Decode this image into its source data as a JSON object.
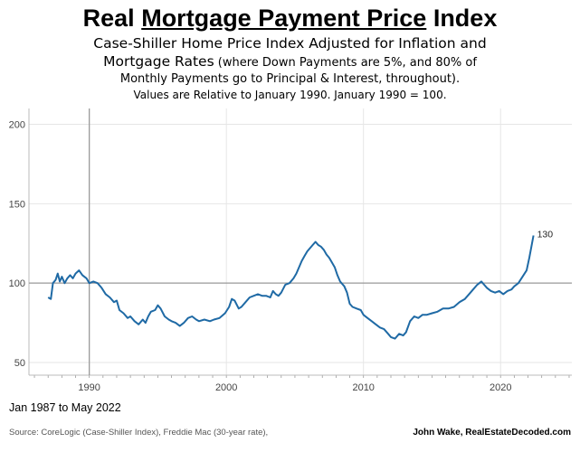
{
  "title": {
    "part1": "Real ",
    "underlined": "Mortgage Payment Price",
    "part2": " Index"
  },
  "subtitle": {
    "line1": "Case-Shiller Home Price Index Adjusted for Inflation and",
    "line2_main": "Mortgage Rates",
    "line2_small": " (where Down Payments are 5%, and 80% of",
    "line3": "Monthly Payments go to Principal & Interest, throughout).",
    "line4": "Values are Relative to January 1990. January 1990 = 100."
  },
  "date_range": "Jan 1987 to May 2022",
  "source": "Source: CoreLogic (Case-Shiller Index), Freddie Mac (30-year rate),",
  "credit": "John Wake, RealEstateDecoded.com",
  "end_label": "130",
  "chart_data": {
    "type": "line",
    "xlim": [
      1985.6,
      2025.2
    ],
    "ylim": [
      42,
      210
    ],
    "yticks": [
      50,
      100,
      150,
      200
    ],
    "xticks": [
      1990,
      2000,
      2010,
      2020
    ],
    "reference_line_y": 100,
    "reference_line_x": 1990,
    "grid": true,
    "color": "#1f6aa5",
    "series": [
      {
        "values": [
          [
            1987.0,
            91
          ],
          [
            1987.2,
            90
          ],
          [
            1987.35,
            100
          ],
          [
            1987.55,
            102
          ],
          [
            1987.7,
            106
          ],
          [
            1987.85,
            101
          ],
          [
            1988.0,
            104
          ],
          [
            1988.2,
            100
          ],
          [
            1988.4,
            103
          ],
          [
            1988.6,
            105
          ],
          [
            1988.8,
            103
          ],
          [
            1989.0,
            106
          ],
          [
            1989.25,
            108
          ],
          [
            1989.5,
            105
          ],
          [
            1989.8,
            103
          ],
          [
            1990.0,
            100
          ],
          [
            1990.3,
            101
          ],
          [
            1990.6,
            100
          ],
          [
            1990.9,
            97
          ],
          [
            1991.2,
            93
          ],
          [
            1991.5,
            91
          ],
          [
            1991.8,
            88
          ],
          [
            1992.0,
            89
          ],
          [
            1992.2,
            83
          ],
          [
            1992.5,
            81
          ],
          [
            1992.8,
            78
          ],
          [
            1993.0,
            79
          ],
          [
            1993.3,
            76
          ],
          [
            1993.6,
            74
          ],
          [
            1993.9,
            77
          ],
          [
            1994.1,
            75
          ],
          [
            1994.3,
            79
          ],
          [
            1994.5,
            82
          ],
          [
            1994.8,
            83
          ],
          [
            1995.0,
            86
          ],
          [
            1995.2,
            84
          ],
          [
            1995.5,
            79
          ],
          [
            1995.8,
            77
          ],
          [
            1996.0,
            76
          ],
          [
            1996.3,
            75
          ],
          [
            1996.6,
            73
          ],
          [
            1996.9,
            75
          ],
          [
            1997.2,
            78
          ],
          [
            1997.5,
            79
          ],
          [
            1997.8,
            77
          ],
          [
            1998.0,
            76
          ],
          [
            1998.4,
            77
          ],
          [
            1998.8,
            76
          ],
          [
            1999.1,
            77
          ],
          [
            1999.5,
            78
          ],
          [
            1999.9,
            81
          ],
          [
            2000.2,
            85
          ],
          [
            2000.4,
            90
          ],
          [
            2000.6,
            89
          ],
          [
            2000.9,
            84
          ],
          [
            2001.1,
            85
          ],
          [
            2001.4,
            88
          ],
          [
            2001.7,
            91
          ],
          [
            2002.0,
            92
          ],
          [
            2002.3,
            93
          ],
          [
            2002.6,
            92
          ],
          [
            2002.9,
            92
          ],
          [
            2003.2,
            91
          ],
          [
            2003.4,
            95
          ],
          [
            2003.6,
            93
          ],
          [
            2003.8,
            92
          ],
          [
            2004.0,
            94
          ],
          [
            2004.3,
            99
          ],
          [
            2004.6,
            100
          ],
          [
            2004.9,
            103
          ],
          [
            2005.1,
            106
          ],
          [
            2005.3,
            110
          ],
          [
            2005.5,
            114
          ],
          [
            2005.7,
            117
          ],
          [
            2005.9,
            120
          ],
          [
            2006.1,
            122
          ],
          [
            2006.3,
            124
          ],
          [
            2006.5,
            126
          ],
          [
            2006.7,
            124
          ],
          [
            2006.9,
            123
          ],
          [
            2007.1,
            121
          ],
          [
            2007.3,
            118
          ],
          [
            2007.5,
            116
          ],
          [
            2007.7,
            113
          ],
          [
            2007.9,
            110
          ],
          [
            2008.1,
            105
          ],
          [
            2008.3,
            101
          ],
          [
            2008.6,
            98
          ],
          [
            2008.8,
            94
          ],
          [
            2009.0,
            87
          ],
          [
            2009.2,
            85
          ],
          [
            2009.5,
            84
          ],
          [
            2009.8,
            83
          ],
          [
            2010.0,
            80
          ],
          [
            2010.3,
            78
          ],
          [
            2010.6,
            76
          ],
          [
            2010.9,
            74
          ],
          [
            2011.2,
            72
          ],
          [
            2011.5,
            71
          ],
          [
            2011.8,
            68
          ],
          [
            2012.0,
            66
          ],
          [
            2012.3,
            65
          ],
          [
            2012.6,
            68
          ],
          [
            2012.9,
            67
          ],
          [
            2013.1,
            69
          ],
          [
            2013.4,
            76
          ],
          [
            2013.7,
            79
          ],
          [
            2014.0,
            78
          ],
          [
            2014.3,
            80
          ],
          [
            2014.6,
            80
          ],
          [
            2015.0,
            81
          ],
          [
            2015.4,
            82
          ],
          [
            2015.8,
            84
          ],
          [
            2016.2,
            84
          ],
          [
            2016.6,
            85
          ],
          [
            2017.0,
            88
          ],
          [
            2017.4,
            90
          ],
          [
            2017.8,
            94
          ],
          [
            2018.0,
            96
          ],
          [
            2018.3,
            99
          ],
          [
            2018.6,
            101
          ],
          [
            2018.8,
            99
          ],
          [
            2019.0,
            97
          ],
          [
            2019.3,
            95
          ],
          [
            2019.6,
            94
          ],
          [
            2019.9,
            95
          ],
          [
            2020.2,
            93
          ],
          [
            2020.5,
            95
          ],
          [
            2020.8,
            96
          ],
          [
            2021.0,
            98
          ],
          [
            2021.3,
            100
          ],
          [
            2021.6,
            104
          ],
          [
            2021.9,
            108
          ],
          [
            2022.1,
            116
          ],
          [
            2022.25,
            123
          ],
          [
            2022.4,
            130
          ]
        ]
      }
    ]
  }
}
